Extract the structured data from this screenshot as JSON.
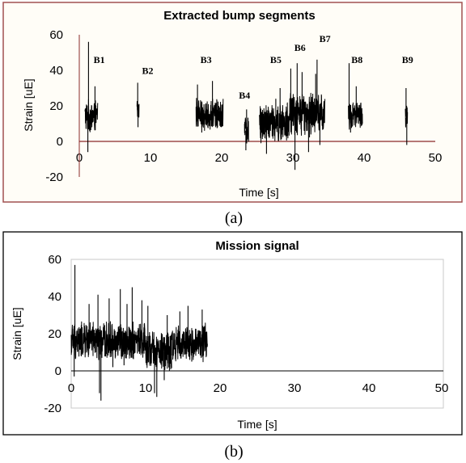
{
  "chart_data": [
    {
      "type": "line",
      "title": "Extracted bump segments",
      "xlabel": "Time [s]",
      "ylabel": "Strain [uE]",
      "xlim": [
        0,
        50
      ],
      "ylim": [
        -20,
        60
      ],
      "xticks": [
        "0",
        "10",
        "20",
        "30",
        "40",
        "50"
      ],
      "yticks": [
        "60",
        "40",
        "20",
        "0",
        "-20"
      ],
      "grid": false,
      "background": "#fffdf7",
      "frame_color": "#a05050",
      "series_color": "#000000",
      "zero_line_color": "#8b2a2a",
      "caption": "(a)",
      "annotations": [
        {
          "text": "B1",
          "x": 2.8,
          "y": 44
        },
        {
          "text": "B2",
          "x": 9.6,
          "y": 38
        },
        {
          "text": "B3",
          "x": 17.8,
          "y": 44
        },
        {
          "text": "B4",
          "x": 23.2,
          "y": 24
        },
        {
          "text": "B5",
          "x": 27.6,
          "y": 44
        },
        {
          "text": "B6",
          "x": 31.0,
          "y": 51
        },
        {
          "text": "B7",
          "x": 34.5,
          "y": 56
        },
        {
          "text": "B8",
          "x": 39.0,
          "y": 44
        },
        {
          "text": "B9",
          "x": 46.1,
          "y": 44
        }
      ],
      "segments": [
        {
          "name": "B1",
          "x_start": 0.8,
          "x_end": 2.6,
          "center": 14,
          "amp": 10,
          "spikes": [
            [
              1.3,
              56
            ],
            [
              1.2,
              -6
            ],
            [
              2.2,
              31
            ]
          ]
        },
        {
          "name": "B2",
          "x_start": 8.1,
          "x_end": 8.4,
          "center": 18,
          "amp": 6,
          "spikes": [
            [
              8.2,
              33
            ],
            [
              8.25,
              8
            ]
          ]
        },
        {
          "name": "B3",
          "x_start": 16.4,
          "x_end": 20.2,
          "center": 15,
          "amp": 10,
          "spikes": [
            [
              16.6,
              32
            ],
            [
              18.7,
              34
            ],
            [
              17.2,
              5
            ]
          ]
        },
        {
          "name": "B4",
          "x_start": 23.2,
          "x_end": 23.8,
          "center": 6,
          "amp": 9,
          "spikes": [
            [
              23.5,
              18
            ],
            [
              23.4,
              -5
            ]
          ]
        },
        {
          "name": "B5",
          "x_start": 25.3,
          "x_end": 29.2,
          "center": 10,
          "amp": 12,
          "spikes": [
            [
              26.3,
              -7
            ],
            [
              28.2,
              30
            ],
            [
              27.6,
              24
            ]
          ]
        },
        {
          "name": "B6",
          "x_start": 29.2,
          "x_end": 32.8,
          "center": 15,
          "amp": 14,
          "spikes": [
            [
              29.7,
              41
            ],
            [
              30.6,
              44
            ],
            [
              30.3,
              -16
            ],
            [
              31.3,
              39
            ],
            [
              32.2,
              -6
            ]
          ]
        },
        {
          "name": "B7",
          "x_start": 32.8,
          "x_end": 34.5,
          "center": 16,
          "amp": 12,
          "spikes": [
            [
              33.4,
              46
            ],
            [
              33.2,
              38
            ],
            [
              33.8,
              -2
            ]
          ]
        },
        {
          "name": "B8",
          "x_start": 37.8,
          "x_end": 39.8,
          "center": 15,
          "amp": 9,
          "spikes": [
            [
              37.9,
              44
            ],
            [
              38.9,
              31
            ],
            [
              38.1,
              5
            ]
          ]
        },
        {
          "name": "B9",
          "x_start": 45.8,
          "x_end": 46.1,
          "center": 14,
          "amp": 8,
          "spikes": [
            [
              45.9,
              30
            ],
            [
              46.0,
              -2
            ]
          ]
        }
      ]
    },
    {
      "type": "line",
      "title": "Mission signal",
      "xlabel": "Time [s]",
      "ylabel": "Strain [uE]",
      "xlim": [
        0,
        50
      ],
      "ylim": [
        -20,
        60
      ],
      "xticks": [
        "0",
        "10",
        "20",
        "30",
        "40",
        "50"
      ],
      "yticks": [
        "60",
        "40",
        "20",
        "0",
        "-20"
      ],
      "grid": false,
      "background": "#ffffff",
      "frame_color": "#000000",
      "series_color": "#000000",
      "zero_line_color": "#000000",
      "caption": "(b)",
      "segments": [
        {
          "name": "mission",
          "x_start": 0.0,
          "x_end": 10.0,
          "center": 16,
          "amp": 11,
          "spikes": [
            [
              0.5,
              57
            ],
            [
              0.4,
              -3
            ],
            [
              2.4,
              36
            ],
            [
              3.6,
              41
            ],
            [
              3.8,
              -12
            ],
            [
              4.0,
              -16
            ],
            [
              5.1,
              39
            ],
            [
              6.6,
              44
            ],
            [
              7.5,
              36
            ],
            [
              8.2,
              45
            ],
            [
              9.5,
              38
            ],
            [
              5.6,
              2
            ],
            [
              7.1,
              3
            ]
          ]
        },
        {
          "name": "mission",
          "x_start": 10.0,
          "x_end": 13.5,
          "center": 10,
          "amp": 12,
          "spikes": [
            [
              10.3,
              35
            ],
            [
              11.2,
              -12
            ],
            [
              11.5,
              -14
            ],
            [
              12.5,
              -5
            ],
            [
              12.9,
              30
            ]
          ]
        },
        {
          "name": "mission",
          "x_start": 13.5,
          "x_end": 18.3,
          "center": 15,
          "amp": 11,
          "spikes": [
            [
              14.6,
              32
            ],
            [
              15.7,
              35
            ],
            [
              16.2,
              5
            ],
            [
              17.6,
              33
            ]
          ]
        }
      ]
    }
  ]
}
